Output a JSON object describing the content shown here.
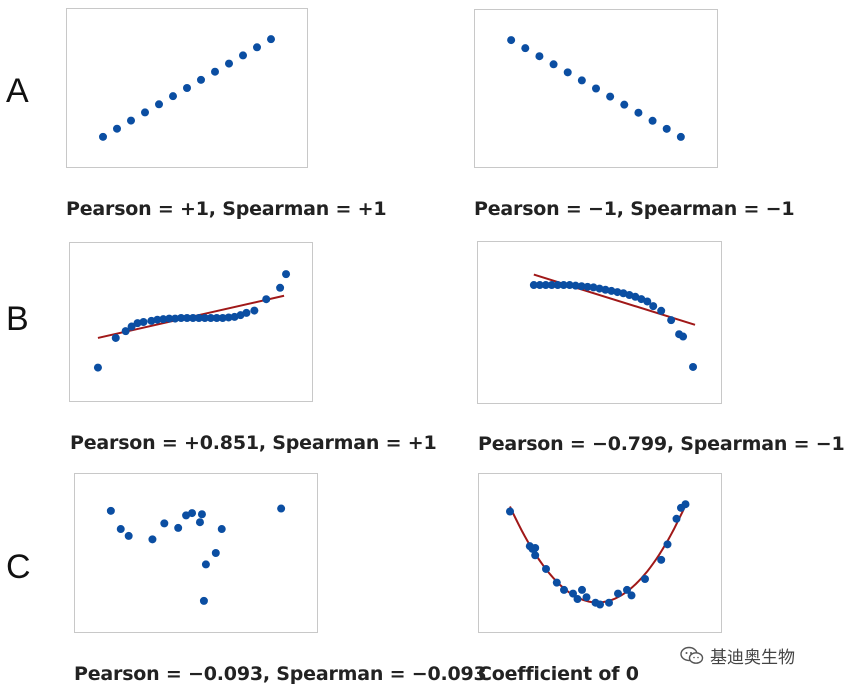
{
  "row_labels": [
    "A",
    "B",
    "C"
  ],
  "captions": {
    "a_left": "Pearson = +1, Spearman = +1",
    "a_right": "Pearson = −1, Spearman = −1",
    "b_left": "Pearson = +0.851, Spearman = +1",
    "b_right": "Pearson = −0.799, Spearman = −1",
    "c_left": "Pearson = −0.093, Spearman = −0.093",
    "c_right": "Coefficient of 0"
  },
  "watermark": {
    "text": "基迪奥生物",
    "icon": "wechat-icon"
  },
  "colors": {
    "points": "#0b4ea2",
    "fit_line": "#a01818",
    "frame": "#c8c8c8"
  },
  "chart_data": [
    {
      "id": "a_left",
      "type": "scatter",
      "xlim": [
        0,
        14
      ],
      "ylim": [
        0,
        14
      ],
      "points": [
        [
          1,
          1
        ],
        [
          2,
          2
        ],
        [
          3,
          3
        ],
        [
          4,
          4
        ],
        [
          5,
          5
        ],
        [
          6,
          6
        ],
        [
          7,
          7
        ],
        [
          8,
          8
        ],
        [
          9,
          9
        ],
        [
          10,
          10
        ],
        [
          11,
          11
        ],
        [
          12,
          12
        ],
        [
          13,
          13
        ]
      ]
    },
    {
      "id": "a_right",
      "type": "scatter",
      "xlim": [
        0,
        14
      ],
      "ylim": [
        0,
        14
      ],
      "points": [
        [
          1,
          13
        ],
        [
          2,
          12
        ],
        [
          3,
          11
        ],
        [
          4,
          10
        ],
        [
          5,
          9
        ],
        [
          6,
          8
        ],
        [
          7,
          7
        ],
        [
          8,
          6
        ],
        [
          9,
          5
        ],
        [
          10,
          4
        ],
        [
          11,
          3
        ],
        [
          12,
          2
        ],
        [
          13,
          1
        ]
      ]
    },
    {
      "id": "b_left",
      "type": "scatter",
      "xlim": [
        0,
        10
      ],
      "ylim": [
        0,
        10
      ],
      "fit_line": [
        [
          0.3,
          3.6
        ],
        [
          9.7,
          7.3
        ]
      ],
      "points": [
        [
          0.3,
          1.0
        ],
        [
          1.2,
          3.6
        ],
        [
          1.7,
          4.2
        ],
        [
          2.0,
          4.6
        ],
        [
          2.3,
          4.9
        ],
        [
          2.6,
          5.0
        ],
        [
          3.0,
          5.1
        ],
        [
          3.3,
          5.2
        ],
        [
          3.6,
          5.25
        ],
        [
          3.9,
          5.3
        ],
        [
          4.2,
          5.3
        ],
        [
          4.5,
          5.35
        ],
        [
          4.8,
          5.35
        ],
        [
          5.1,
          5.35
        ],
        [
          5.4,
          5.35
        ],
        [
          5.7,
          5.35
        ],
        [
          6.0,
          5.35
        ],
        [
          6.3,
          5.35
        ],
        [
          6.6,
          5.35
        ],
        [
          6.9,
          5.4
        ],
        [
          7.2,
          5.45
        ],
        [
          7.5,
          5.6
        ],
        [
          7.8,
          5.8
        ],
        [
          8.2,
          6.0
        ],
        [
          8.8,
          7.0
        ],
        [
          9.5,
          8.0
        ],
        [
          9.8,
          9.2
        ]
      ]
    },
    {
      "id": "b_right",
      "type": "scatter",
      "xlim": [
        0,
        10
      ],
      "ylim": [
        0,
        10
      ],
      "fit_line": [
        [
          1.7,
          9.1
        ],
        [
          9.8,
          4.8
        ]
      ],
      "points": [
        [
          1.7,
          8.2
        ],
        [
          2.0,
          8.2
        ],
        [
          2.3,
          8.2
        ],
        [
          2.6,
          8.2
        ],
        [
          2.9,
          8.2
        ],
        [
          3.2,
          8.2
        ],
        [
          3.5,
          8.2
        ],
        [
          3.8,
          8.15
        ],
        [
          4.1,
          8.1
        ],
        [
          4.4,
          8.05
        ],
        [
          4.7,
          8.0
        ],
        [
          5.0,
          7.9
        ],
        [
          5.3,
          7.8
        ],
        [
          5.6,
          7.7
        ],
        [
          5.9,
          7.6
        ],
        [
          6.2,
          7.5
        ],
        [
          6.5,
          7.35
        ],
        [
          6.8,
          7.2
        ],
        [
          7.1,
          7.0
        ],
        [
          7.4,
          6.8
        ],
        [
          7.7,
          6.4
        ],
        [
          8.1,
          6.0
        ],
        [
          8.6,
          5.2
        ],
        [
          9.0,
          4.0
        ],
        [
          9.2,
          3.8
        ],
        [
          9.7,
          1.2
        ]
      ]
    },
    {
      "id": "c_left",
      "type": "scatter",
      "xlim": [
        0,
        10
      ],
      "ylim": [
        0,
        10
      ],
      "points": [
        [
          0.7,
          8.7
        ],
        [
          1.2,
          7.1
        ],
        [
          1.6,
          6.5
        ],
        [
          2.8,
          6.2
        ],
        [
          3.4,
          7.6
        ],
        [
          4.1,
          7.2
        ],
        [
          4.5,
          8.3
        ],
        [
          4.8,
          8.5
        ],
        [
          5.3,
          8.4
        ],
        [
          5.2,
          7.7
        ],
        [
          5.5,
          4.0
        ],
        [
          6.0,
          5.0
        ],
        [
          5.4,
          0.8
        ],
        [
          6.3,
          7.1
        ],
        [
          9.3,
          8.9
        ]
      ]
    },
    {
      "id": "c_right",
      "type": "scatter",
      "xlim": [
        -1.1,
        1.1
      ],
      "ylim": [
        -0.1,
        1.15
      ],
      "fit_curve": "quadratic",
      "points": [
        [
          -1.0,
          0.98
        ],
        [
          -0.78,
          0.6
        ],
        [
          -0.75,
          0.57
        ],
        [
          -0.72,
          0.58
        ],
        [
          -0.72,
          0.5
        ],
        [
          -0.6,
          0.35
        ],
        [
          -0.48,
          0.2
        ],
        [
          -0.4,
          0.12
        ],
        [
          -0.3,
          0.08
        ],
        [
          -0.25,
          0.02
        ],
        [
          -0.2,
          0.12
        ],
        [
          -0.15,
          0.04
        ],
        [
          -0.05,
          -0.02
        ],
        [
          0.0,
          -0.04
        ],
        [
          0.1,
          -0.02
        ],
        [
          0.2,
          0.08
        ],
        [
          0.3,
          0.12
        ],
        [
          0.35,
          0.06
        ],
        [
          0.5,
          0.24
        ],
        [
          0.68,
          0.45
        ],
        [
          0.75,
          0.62
        ],
        [
          0.85,
          0.9
        ],
        [
          0.9,
          1.02
        ],
        [
          0.95,
          1.06
        ]
      ]
    }
  ]
}
